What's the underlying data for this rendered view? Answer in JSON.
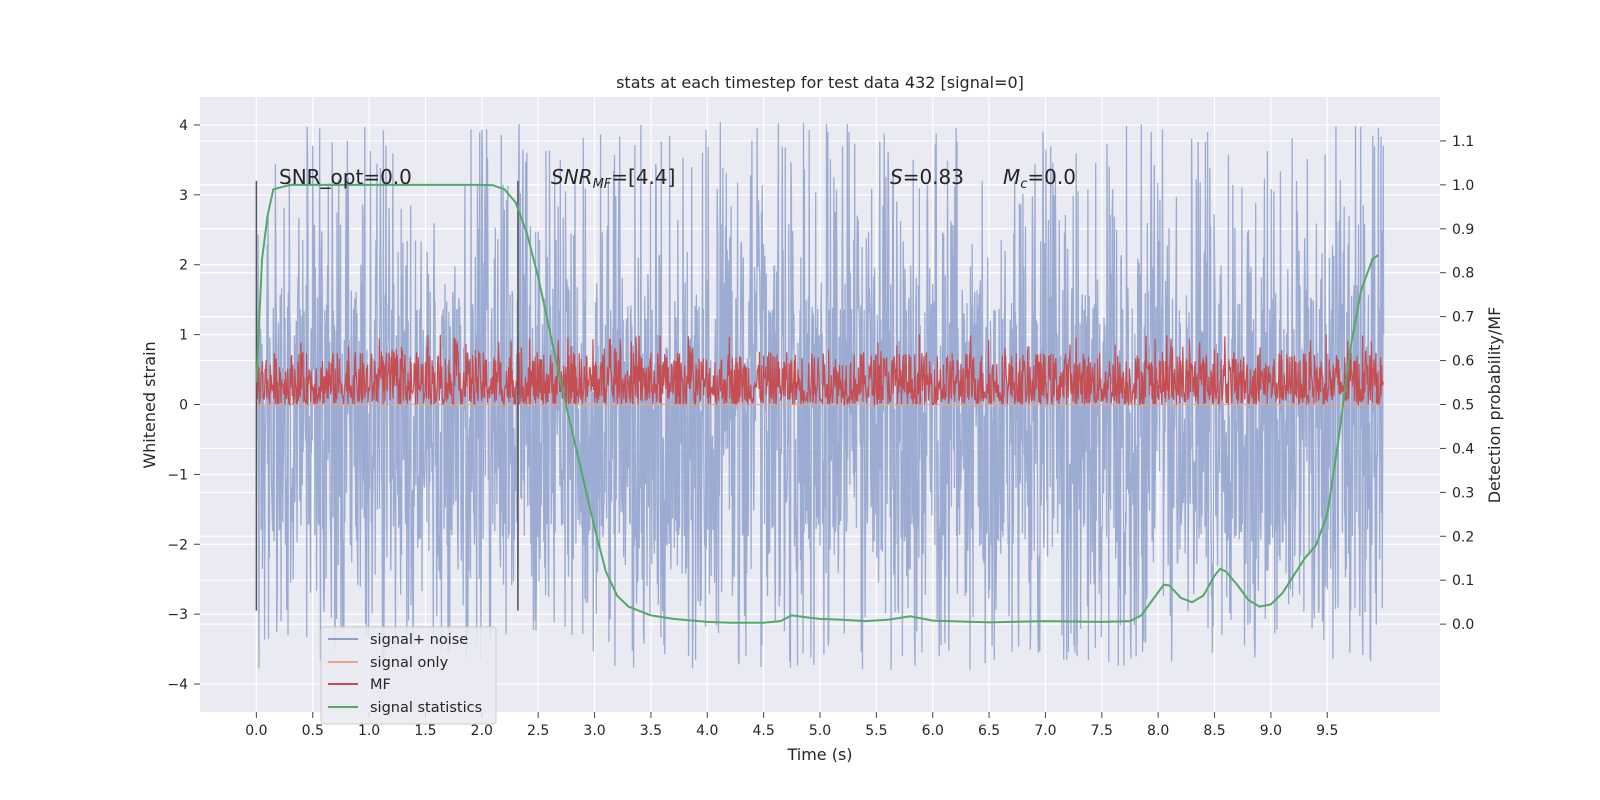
{
  "chart_data": {
    "type": "line",
    "title": "stats at each timestep for test data 432 [signal=0]",
    "xlabel": "Time (s)",
    "ylabel_left": "Whitened strain",
    "ylabel_right": "Detection probability/MF",
    "xlim": [
      -0.5,
      10.5
    ],
    "ylim_left": [
      -4.4,
      4.4
    ],
    "ylim_right": [
      -0.2,
      1.2
    ],
    "x_ticks": [
      "0.0",
      "0.5",
      "1.0",
      "1.5",
      "2.0",
      "2.5",
      "3.0",
      "3.5",
      "4.0",
      "4.5",
      "5.0",
      "5.5",
      "6.0",
      "6.5",
      "7.0",
      "7.5",
      "8.0",
      "8.5",
      "9.0",
      "9.5"
    ],
    "y_left_ticks": [
      "−4",
      "−3",
      "−2",
      "−1",
      "0",
      "1",
      "2",
      "3",
      "4"
    ],
    "y_right_ticks": [
      "0.0",
      "0.1",
      "0.2",
      "0.3",
      "0.4",
      "0.5",
      "0.6",
      "0.7",
      "0.8",
      "0.9",
      "1.0",
      "1.1"
    ],
    "grid": true,
    "legend_position": "lower-left",
    "legend": [
      {
        "label": "signal+ noise",
        "color": "#8da0cb"
      },
      {
        "label": "signal only",
        "color": "#e9a68a"
      },
      {
        "label": "MF",
        "color": "#c44e52"
      },
      {
        "label": "signal statistics",
        "color": "#55a868"
      }
    ],
    "annotations": {
      "snr_opt": "SNR_opt=0.0",
      "snr_mf_var": "SNR",
      "snr_mf_sub": "MF",
      "snr_mf_val": "=[4.4]",
      "s_var": "S",
      "s_val": "=0.83",
      "mc_var": "M",
      "mc_sub": "c",
      "mc_val": "=0.0"
    },
    "vertical_markers_s": [
      0.0,
      2.32
    ],
    "series": [
      {
        "name": "signal+ noise",
        "color": "#8da0cb",
        "x_range": [
          0.0,
          10.0
        ],
        "y_range": [
          -3.8,
          4.05
        ],
        "typical_band": [
          -1.7,
          1.35
        ]
      },
      {
        "name": "signal only",
        "color": "#e9a68a",
        "x_range": [
          0.0,
          10.0
        ],
        "constant_value": 0.0
      },
      {
        "name": "MF",
        "color": "#c44e52",
        "x_range": [
          0.0,
          10.0
        ],
        "axis": "right",
        "y_range": [
          0.5,
          0.66
        ]
      },
      {
        "name": "signal statistics",
        "color": "#55a868",
        "axis": "right",
        "x": [
          0.0,
          0.05,
          0.1,
          0.15,
          0.3,
          0.5,
          1.0,
          1.5,
          1.8,
          2.0,
          2.1,
          2.2,
          2.3,
          2.4,
          2.5,
          2.6,
          2.7,
          2.8,
          2.9,
          3.0,
          3.1,
          3.2,
          3.3,
          3.5,
          3.7,
          4.0,
          4.2,
          4.5,
          4.65,
          4.75,
          4.9,
          5.0,
          5.2,
          5.4,
          5.6,
          5.8,
          6.0,
          6.5,
          7.0,
          7.5,
          7.75,
          7.85,
          7.95,
          8.05,
          8.1,
          8.2,
          8.3,
          8.4,
          8.5,
          8.55,
          8.6,
          8.7,
          8.8,
          8.9,
          9.0,
          9.1,
          9.2,
          9.3,
          9.4,
          9.5,
          9.6,
          9.7,
          9.8,
          9.9,
          9.95
        ],
        "y": [
          0.55,
          0.83,
          0.93,
          0.99,
          1.0,
          1.0,
          1.0,
          1.0,
          1.0,
          1.0,
          0.999,
          0.99,
          0.96,
          0.89,
          0.79,
          0.67,
          0.55,
          0.44,
          0.33,
          0.22,
          0.12,
          0.065,
          0.04,
          0.02,
          0.012,
          0.005,
          0.003,
          0.003,
          0.007,
          0.02,
          0.015,
          0.012,
          0.01,
          0.007,
          0.01,
          0.018,
          0.008,
          0.004,
          0.007,
          0.005,
          0.007,
          0.02,
          0.055,
          0.09,
          0.088,
          0.06,
          0.05,
          0.065,
          0.11,
          0.126,
          0.12,
          0.09,
          0.055,
          0.04,
          0.045,
          0.07,
          0.11,
          0.15,
          0.18,
          0.25,
          0.42,
          0.62,
          0.76,
          0.83,
          0.84
        ]
      }
    ]
  }
}
